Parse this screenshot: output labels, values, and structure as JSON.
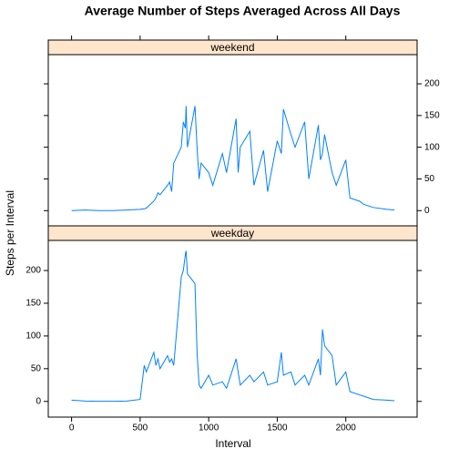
{
  "chart_data": {
    "type": "line",
    "title": "Average Number of Steps Averaged Across All Days",
    "xlabel": "Interval",
    "ylabel": "Steps per Interval",
    "xlim": [
      -170,
      2520
    ],
    "xticks": [
      0,
      500,
      1000,
      1500,
      2000
    ],
    "ylim": [
      -24,
      246
    ],
    "yticks": [
      0,
      50,
      100,
      150,
      200
    ],
    "color": "#0080ff",
    "strip_color": "#ffe5cc",
    "x": [
      0,
      100,
      200,
      300,
      400,
      500,
      530,
      545,
      600,
      615,
      630,
      645,
      700,
      715,
      730,
      745,
      800,
      815,
      830,
      835,
      845,
      900,
      915,
      930,
      945,
      1000,
      1030,
      1100,
      1130,
      1200,
      1215,
      1230,
      1300,
      1330,
      1400,
      1430,
      1500,
      1530,
      1545,
      1600,
      1630,
      1700,
      1730,
      1800,
      1815,
      1830,
      1845,
      1900,
      1930,
      2000,
      2030,
      2100,
      2130,
      2200,
      2300,
      2355
    ],
    "series": [
      {
        "name": "weekend",
        "values": [
          0,
          1,
          0,
          0,
          1,
          2,
          3,
          4,
          15,
          20,
          28,
          25,
          40,
          45,
          30,
          75,
          100,
          140,
          130,
          165,
          100,
          165,
          100,
          50,
          75,
          60,
          40,
          90,
          60,
          145,
          60,
          100,
          125,
          40,
          95,
          30,
          110,
          90,
          160,
          120,
          100,
          140,
          50,
          135,
          80,
          90,
          120,
          60,
          40,
          80,
          20,
          15,
          10,
          5,
          2,
          1
        ]
      },
      {
        "name": "weekday",
        "values": [
          2,
          0.5,
          0.2,
          0.1,
          0.5,
          3,
          55,
          45,
          75,
          55,
          65,
          50,
          70,
          60,
          65,
          55,
          190,
          200,
          225,
          230,
          195,
          180,
          75,
          25,
          20,
          40,
          25,
          30,
          20,
          65,
          45,
          25,
          40,
          30,
          45,
          25,
          30,
          75,
          40,
          45,
          25,
          40,
          25,
          65,
          40,
          110,
          85,
          70,
          25,
          45,
          15,
          10,
          8,
          3,
          2,
          1
        ]
      }
    ]
  }
}
